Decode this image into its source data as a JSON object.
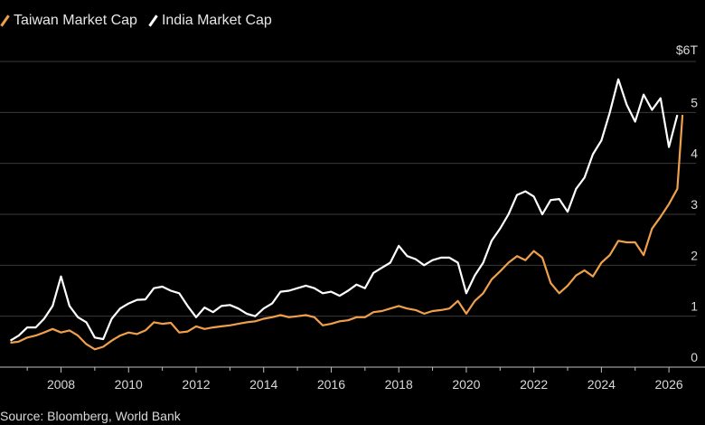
{
  "source": "Source: Bloomberg, World Bank",
  "colors": {
    "taiwan": "#f0a04b",
    "india": "#ffffff",
    "grid": "#3a3a3a",
    "background": "#000000"
  },
  "chart_data": {
    "type": "line",
    "title": "",
    "xlabel": "",
    "ylabel": "",
    "unit_label": "$6T",
    "xlim": [
      2006.3,
      2026.8
    ],
    "ylim": [
      0,
      6
    ],
    "x_ticks": [
      2008,
      2010,
      2012,
      2014,
      2016,
      2018,
      2020,
      2022,
      2024,
      2026
    ],
    "y_ticks": [
      0,
      1,
      2,
      3,
      4,
      5,
      6
    ],
    "y_tick_labels": [
      "0",
      "1",
      "2",
      "3",
      "4",
      "5",
      "$6T"
    ],
    "legend_position": "top-left",
    "grid": true,
    "series": [
      {
        "name": "Taiwan Market Cap",
        "color": "#f0a04b",
        "x": [
          2006.5,
          2006.75,
          2007.0,
          2007.25,
          2007.5,
          2007.75,
          2008.0,
          2008.25,
          2008.5,
          2008.75,
          2009.0,
          2009.25,
          2009.5,
          2009.75,
          2010.0,
          2010.25,
          2010.5,
          2010.75,
          2011.0,
          2011.25,
          2011.5,
          2011.75,
          2012.0,
          2012.25,
          2012.5,
          2012.75,
          2013.0,
          2013.25,
          2013.5,
          2013.75,
          2014.0,
          2014.25,
          2014.5,
          2014.75,
          2015.0,
          2015.25,
          2015.5,
          2015.75,
          2016.0,
          2016.25,
          2016.5,
          2016.75,
          2017.0,
          2017.25,
          2017.5,
          2017.75,
          2018.0,
          2018.25,
          2018.5,
          2018.75,
          2019.0,
          2019.25,
          2019.5,
          2019.75,
          2020.0,
          2020.25,
          2020.5,
          2020.75,
          2021.0,
          2021.25,
          2021.5,
          2021.75,
          2022.0,
          2022.25,
          2022.5,
          2022.75,
          2023.0,
          2023.25,
          2023.5,
          2023.75,
          2024.0,
          2024.25,
          2024.5,
          2024.75,
          2025.0,
          2025.25,
          2025.5,
          2025.75,
          2026.0,
          2026.25
        ],
        "values": [
          0.48,
          0.5,
          0.58,
          0.62,
          0.68,
          0.75,
          0.68,
          0.72,
          0.62,
          0.45,
          0.35,
          0.4,
          0.52,
          0.62,
          0.68,
          0.65,
          0.72,
          0.88,
          0.85,
          0.87,
          0.68,
          0.7,
          0.8,
          0.75,
          0.78,
          0.8,
          0.82,
          0.85,
          0.88,
          0.9,
          0.95,
          0.98,
          1.02,
          0.98,
          1.0,
          1.02,
          0.98,
          0.82,
          0.85,
          0.9,
          0.92,
          0.98,
          0.98,
          1.08,
          1.1,
          1.15,
          1.2,
          1.15,
          1.12,
          1.05,
          1.1,
          1.12,
          1.15,
          1.3,
          1.05,
          1.3,
          1.45,
          1.72,
          1.88,
          2.05,
          2.18,
          2.1,
          2.28,
          2.15,
          1.65,
          1.45,
          1.6,
          1.8,
          1.9,
          1.78,
          2.05,
          2.2,
          2.48,
          2.45,
          2.45,
          2.2,
          2.72,
          2.95,
          3.2,
          3.5
        ],
        "extra_points": {
          "x": [
            2026.4
          ],
          "values": [
            4.95
          ]
        }
      },
      {
        "name": "India Market Cap",
        "color": "#ffffff",
        "x": [
          2006.5,
          2006.75,
          2007.0,
          2007.25,
          2007.5,
          2007.75,
          2008.0,
          2008.25,
          2008.5,
          2008.75,
          2009.0,
          2009.25,
          2009.5,
          2009.75,
          2010.0,
          2010.25,
          2010.5,
          2010.75,
          2011.0,
          2011.25,
          2011.5,
          2011.75,
          2012.0,
          2012.25,
          2012.5,
          2012.75,
          2013.0,
          2013.25,
          2013.5,
          2013.75,
          2014.0,
          2014.25,
          2014.5,
          2014.75,
          2015.0,
          2015.25,
          2015.5,
          2015.75,
          2016.0,
          2016.25,
          2016.5,
          2016.75,
          2017.0,
          2017.25,
          2017.5,
          2017.75,
          2018.0,
          2018.25,
          2018.5,
          2018.75,
          2019.0,
          2019.25,
          2019.5,
          2019.75,
          2020.0,
          2020.25,
          2020.5,
          2020.75,
          2021.0,
          2021.25,
          2021.5,
          2021.75,
          2022.0,
          2022.25,
          2022.5,
          2022.75,
          2023.0,
          2023.25,
          2023.5,
          2023.75,
          2024.0,
          2024.25,
          2024.5,
          2024.75,
          2025.0,
          2025.25,
          2025.5,
          2025.75,
          2026.0,
          2026.25
        ],
        "values": [
          0.52,
          0.62,
          0.78,
          0.78,
          0.95,
          1.2,
          1.78,
          1.2,
          0.98,
          0.88,
          0.58,
          0.55,
          0.95,
          1.15,
          1.25,
          1.32,
          1.33,
          1.55,
          1.58,
          1.5,
          1.45,
          1.2,
          0.98,
          1.17,
          1.08,
          1.2,
          1.22,
          1.15,
          1.05,
          1.0,
          1.15,
          1.25,
          1.48,
          1.5,
          1.55,
          1.6,
          1.55,
          1.45,
          1.48,
          1.4,
          1.5,
          1.62,
          1.55,
          1.85,
          1.95,
          2.05,
          2.38,
          2.18,
          2.12,
          2.0,
          2.1,
          2.15,
          2.15,
          2.05,
          1.45,
          1.8,
          2.05,
          2.48,
          2.72,
          3.0,
          3.38,
          3.45,
          3.35,
          3.0,
          3.28,
          3.3,
          3.05,
          3.5,
          3.72,
          4.18,
          4.45,
          5.0,
          5.65,
          5.15,
          4.82,
          5.35,
          5.05,
          5.28,
          4.32,
          4.95
        ]
      }
    ]
  },
  "legend": [
    {
      "label": "Taiwan Market Cap",
      "color": "#f0a04b"
    },
    {
      "label": "India Market Cap",
      "color": "#ffffff"
    }
  ]
}
